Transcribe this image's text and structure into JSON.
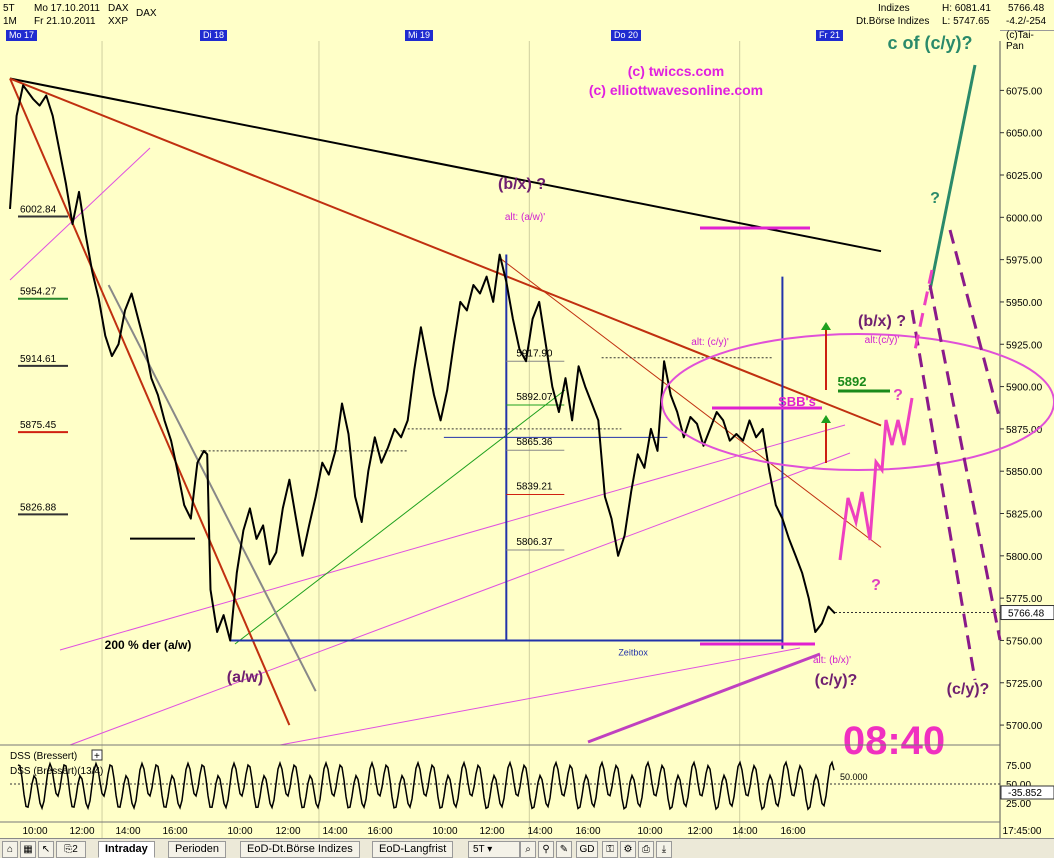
{
  "header": {
    "interval": "5T",
    "range_start": "Mo 17.10.2011",
    "range_end": "Fr 21.10.2011",
    "symbol": "DAX",
    "symbol2": "XXP",
    "span": "1M",
    "market": "Indizes",
    "exchange": "Dt.Börse Indizes",
    "high_label": "H: 6081.41",
    "low_label": "L: 5747.65",
    "last_price": "5766.48",
    "change": "-4.2/-254",
    "copyright": "(c)Tai-Pan"
  },
  "days": [
    "Mo 17",
    "Di 18",
    "Mi 19",
    "Do 20",
    "Fr 21"
  ],
  "chart_data": {
    "type": "line",
    "title": "",
    "ylim": [
      5690,
      6090
    ],
    "y_ticks": [
      6075,
      6050,
      6025,
      6000,
      5975,
      5950,
      5925,
      5900,
      5875,
      5850,
      5825,
      5800,
      5775,
      5750,
      5725,
      5700
    ],
    "y_tick_labels": [
      "6075.00",
      "6050.00",
      "6025.00",
      "6000.00",
      "5975.00",
      "5950.00",
      "5925.00",
      "5900.00",
      "5875.00",
      "5850.00",
      "5825.00",
      "5800.00",
      "5775.00",
      "5750.00",
      "5725.00",
      "5700.00"
    ],
    "x_tick_labels": [
      "10:00",
      "12:00",
      "14:00",
      "16:00",
      "10:00",
      "12:00",
      "14:00",
      "16:00",
      "10:00",
      "12:00",
      "14:00",
      "16:00",
      "10:00",
      "12:00",
      "14:00",
      "16:00",
      "17:45:00"
    ],
    "series": [
      {
        "points": [
          [
            0,
            6005
          ],
          [
            2,
            6060
          ],
          [
            4,
            6078
          ],
          [
            7,
            6070
          ],
          [
            9,
            6066
          ],
          [
            11,
            6072
          ],
          [
            13,
            6060
          ],
          [
            15,
            6040
          ],
          [
            17,
            6020
          ],
          [
            19,
            5996
          ],
          [
            21,
            6015
          ],
          [
            23,
            5990
          ],
          [
            25,
            5968
          ],
          [
            27,
            5952
          ],
          [
            29,
            5930
          ],
          [
            31,
            5918
          ],
          [
            33,
            5925
          ],
          [
            35,
            5945
          ],
          [
            37,
            5955
          ],
          [
            39,
            5940
          ],
          [
            41,
            5925
          ],
          [
            43,
            5905
          ],
          [
            45,
            5895
          ],
          [
            47,
            5880
          ],
          [
            49,
            5868
          ],
          [
            51,
            5850
          ],
          [
            53,
            5830
          ],
          [
            55,
            5822
          ],
          [
            57,
            5855
          ],
          [
            59,
            5862
          ],
          [
            60,
            5860
          ],
          [
            61,
            5780
          ],
          [
            63,
            5755
          ],
          [
            65,
            5765
          ],
          [
            67,
            5750
          ],
          [
            69,
            5790
          ],
          [
            71,
            5815
          ],
          [
            73,
            5828
          ],
          [
            75,
            5810
          ],
          [
            77,
            5818
          ],
          [
            79,
            5795
          ],
          [
            81,
            5802
          ],
          [
            83,
            5828
          ],
          [
            85,
            5845
          ],
          [
            87,
            5822
          ],
          [
            89,
            5800
          ],
          [
            91,
            5818
          ],
          [
            93,
            5835
          ],
          [
            95,
            5855
          ],
          [
            97,
            5848
          ],
          [
            99,
            5862
          ],
          [
            101,
            5890
          ],
          [
            103,
            5872
          ],
          [
            105,
            5835
          ],
          [
            107,
            5820
          ],
          [
            109,
            5850
          ],
          [
            111,
            5870
          ],
          [
            113,
            5855
          ],
          [
            115,
            5864
          ],
          [
            117,
            5875
          ],
          [
            119,
            5870
          ],
          [
            121,
            5880
          ],
          [
            123,
            5910
          ],
          [
            125,
            5935
          ],
          [
            127,
            5915
          ],
          [
            129,
            5895
          ],
          [
            131,
            5880
          ],
          [
            133,
            5898
          ],
          [
            135,
            5925
          ],
          [
            137,
            5950
          ],
          [
            139,
            5945
          ],
          [
            141,
            5960
          ],
          [
            143,
            5955
          ],
          [
            145,
            5965
          ],
          [
            147,
            5950
          ],
          [
            149,
            5978
          ],
          [
            151,
            5962
          ],
          [
            153,
            5940
          ],
          [
            155,
            5922
          ],
          [
            157,
            5915
          ],
          [
            159,
            5940
          ],
          [
            161,
            5950
          ],
          [
            163,
            5925
          ],
          [
            165,
            5900
          ],
          [
            167,
            5885
          ],
          [
            169,
            5905
          ],
          [
            171,
            5880
          ],
          [
            173,
            5912
          ],
          [
            175,
            5900
          ],
          [
            177,
            5890
          ],
          [
            179,
            5880
          ],
          [
            181,
            5835
          ],
          [
            183,
            5822
          ],
          [
            185,
            5800
          ],
          [
            187,
            5812
          ],
          [
            189,
            5838
          ],
          [
            191,
            5860
          ],
          [
            193,
            5852
          ],
          [
            195,
            5875
          ],
          [
            197,
            5862
          ],
          [
            199,
            5915
          ],
          [
            201,
            5895
          ],
          [
            203,
            5885
          ],
          [
            205,
            5870
          ],
          [
            207,
            5882
          ],
          [
            209,
            5878
          ],
          [
            211,
            5865
          ],
          [
            213,
            5875
          ],
          [
            215,
            5885
          ],
          [
            217,
            5880
          ],
          [
            219,
            5868
          ],
          [
            221,
            5872
          ],
          [
            223,
            5868
          ],
          [
            225,
            5880
          ],
          [
            227,
            5870
          ],
          [
            229,
            5875
          ],
          [
            231,
            5850
          ],
          [
            233,
            5830
          ],
          [
            235,
            5822
          ],
          [
            237,
            5810
          ],
          [
            239,
            5800
          ],
          [
            241,
            5790
          ],
          [
            243,
            5775
          ],
          [
            245,
            5755
          ],
          [
            247,
            5760
          ],
          [
            249,
            5770
          ],
          [
            251,
            5766
          ]
        ]
      }
    ],
    "trendlines": [
      {
        "from": [
          0,
          6082
        ],
        "to": [
          265,
          5980
        ],
        "color": "#000000"
      },
      {
        "from": [
          0,
          6082
        ],
        "to": [
          265,
          5877
        ],
        "color": "#c03010"
      },
      {
        "from": [
          0,
          6082
        ],
        "to": [
          85,
          5700
        ],
        "color": "#c03010"
      },
      {
        "from": [
          30,
          5960
        ],
        "to": [
          93,
          5720
        ],
        "color": "#888888"
      },
      {
        "from": [
          149,
          5976
        ],
        "to": [
          265,
          5805
        ],
        "color": "#c03010"
      }
    ],
    "level_labels": [
      {
        "value": 6002.84,
        "label": "6002.84",
        "color": "#333333"
      },
      {
        "value": 5954.27,
        "label": "5954.27",
        "color": "#2a8a2a"
      },
      {
        "value": 5914.61,
        "label": "5914.61",
        "color": "#333333"
      },
      {
        "value": 5875.45,
        "label": "5875.45",
        "color": "#d02010"
      },
      {
        "value": 5826.88,
        "label": "5826.88",
        "color": "#333333"
      }
    ],
    "fib_labels": [
      "5917.90",
      "5892.07",
      "5865.36",
      "5839.21",
      "5806.37"
    ],
    "fib_values": [
      5917.9,
      5892.07,
      5865.36,
      5839.21,
      5806.37
    ],
    "annotations": {
      "copyright1": "(c) twiccs.com",
      "copyright2": "(c) elliottwavesonline.com",
      "wave_cofcy": "c of (c/y)?",
      "wave_bx_top": "(b/x) ?",
      "alt_aw": "alt: (a/w)'",
      "alt_cy": "alt: (c/y)'",
      "wave_bx_right": "(b/x) ?",
      "alt_cy2": "alt:(c/y)'",
      "sbbs": "SBB's",
      "level_5892": "5892",
      "wave_aw": "(a/w)",
      "pct_200": "200 % der (a/w)",
      "zeitbox": "Zeitbox",
      "alt_bx": "alt: (b/x)'",
      "wave_cy": "(c/y)?",
      "wave_cy_right": "(c/y)?",
      "q1": "?",
      "q2": "?",
      "q3": "?",
      "time": "08:40"
    },
    "oscillator": {
      "name1": "DSS (Bressert)",
      "name2": "DSS (Bressert)(13/4)",
      "level_50": "50.000",
      "last_value": "-35.852",
      "ticks": [
        "75.00",
        "50.00",
        "25.00"
      ]
    },
    "last_price_tag": "5766.48"
  },
  "tabs": [
    "Intraday",
    "Perioden",
    "EoD-Dt.Börse Indizes",
    "EoD-Langfrist"
  ],
  "toolbar": {
    "interval_select": "5T",
    "gd_label": "GD",
    "count_label": "2"
  }
}
